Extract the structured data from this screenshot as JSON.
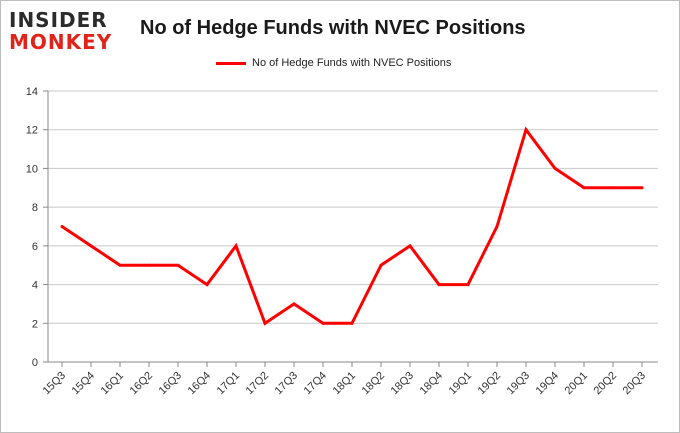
{
  "logo": {
    "line1": "INSIDER",
    "line2": "MONKEY"
  },
  "chart_data": {
    "type": "line",
    "title": "No of Hedge Funds with NVEC Positions",
    "xlabel": "",
    "ylabel": "",
    "ylim": [
      0,
      14
    ],
    "yticks": [
      0,
      2,
      4,
      6,
      8,
      10,
      12,
      14
    ],
    "grid": true,
    "legend_position": "top",
    "categories": [
      "15Q3",
      "15Q4",
      "16Q1",
      "16Q2",
      "16Q3",
      "16Q4",
      "17Q1",
      "17Q2",
      "17Q3",
      "17Q4",
      "18Q1",
      "18Q2",
      "18Q3",
      "18Q4",
      "19Q1",
      "19Q2",
      "19Q3",
      "19Q4",
      "20Q1",
      "20Q2",
      "20Q3"
    ],
    "series": [
      {
        "name": "No of Hedge Funds with NVEC  Positions",
        "color": "#ff0000",
        "values": [
          7,
          6,
          5,
          5,
          5,
          4,
          6,
          2,
          3,
          2,
          2,
          5,
          6,
          4,
          4,
          7,
          12,
          10,
          9,
          9,
          9
        ]
      }
    ]
  }
}
